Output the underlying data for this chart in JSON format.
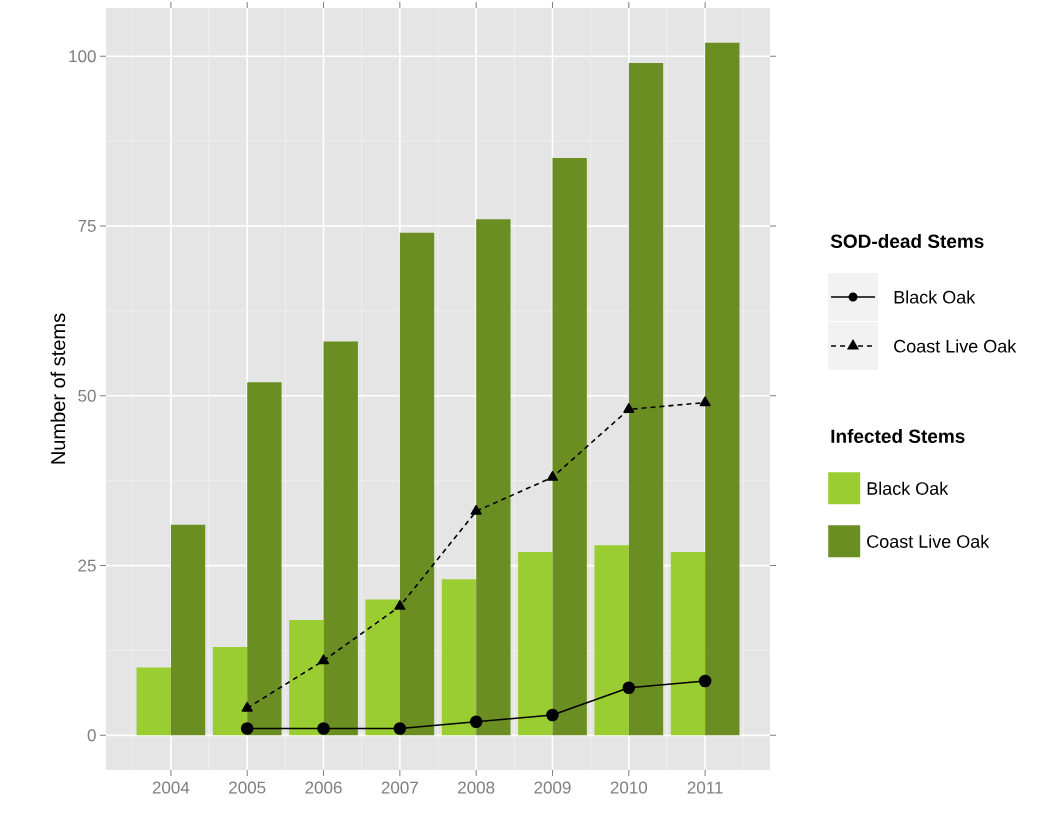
{
  "chart_data": {
    "type": "bar",
    "ylabel": "Number of stems",
    "legend_title": "SOD-dead Stems",
    "annotations": [
      "Infected Stems"
    ],
    "categories": [
      "2004",
      "2005",
      "2006",
      "2007",
      "2008",
      "2009",
      "2010",
      "2011"
    ],
    "series": [
      {
        "name": "Black Oak",
        "type": "line",
        "color": "#000000",
        "marker": "circle",
        "line_style": "solid",
        "values": [
          null,
          1,
          1,
          1,
          2,
          3,
          7,
          8
        ]
      },
      {
        "name": "Coast Live Oak",
        "type": "line",
        "color": "#000000",
        "marker": "triangle",
        "line_style": "dashed",
        "values": [
          null,
          4,
          11,
          19,
          33,
          38,
          48,
          49
        ]
      },
      {
        "name": "Black Oak",
        "color": "#9acd32",
        "values": [
          10,
          13,
          17,
          20,
          23,
          27,
          28,
          27
        ]
      },
      {
        "name": "Coast Live Oak",
        "color": "#6b8e23",
        "values": [
          31,
          52,
          58,
          74,
          76,
          85,
          99,
          102
        ]
      }
    ],
    "ylim": [
      -5.1,
      107.1
    ],
    "yticks": [
      0,
      25,
      50,
      75,
      100
    ],
    "grid": true,
    "legend": "right"
  }
}
